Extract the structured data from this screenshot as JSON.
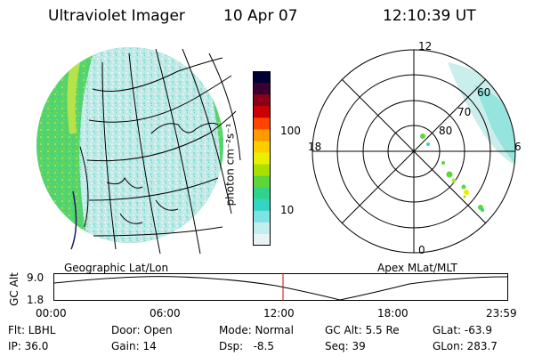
{
  "header": {
    "instrument": "Ultraviolet Imager",
    "date": "10 Apr 07",
    "time": "12:10:39 UT"
  },
  "colorbar": {
    "unit_label": "photon cm⁻²s⁻¹",
    "tick_labels": [
      "100",
      "10"
    ],
    "colors": [
      "#000033",
      "#3a0030",
      "#8b0016",
      "#cc0000",
      "#ff4400",
      "#ff9900",
      "#ffcc00",
      "#e8f000",
      "#a8e000",
      "#5dd63a",
      "#2fd48a",
      "#33d6c4",
      "#7fe3e3",
      "#c2eeee",
      "#e8f4f4"
    ]
  },
  "left_panel": {
    "label": "Geographic Lat/Lon"
  },
  "right_panel": {
    "label": "Apex MLat/MLT",
    "mlt_labels": {
      "top": "12",
      "left": "18",
      "right": "6",
      "bottom": "0"
    },
    "lat_labels": [
      "60",
      "70",
      "80"
    ]
  },
  "timeline": {
    "axis_label": "GC Alt",
    "ytick_labels": [
      "9.0",
      "1.8"
    ],
    "xtick_labels": [
      "00:00",
      "06:00",
      "12:00",
      "18:00",
      "23:59"
    ],
    "current_marker_color": "#cc0000"
  },
  "info": {
    "row1": [
      "Flt: LBHL",
      "Door: Open",
      "Mode: Normal",
      "GC Alt: 5.5 Re",
      "GLat: -63.9"
    ],
    "row2": [
      "IP: 36.0",
      "Gain: 14",
      "Dsp:   -8.5",
      "Seq: 39",
      "GLon: 283.7"
    ]
  }
}
